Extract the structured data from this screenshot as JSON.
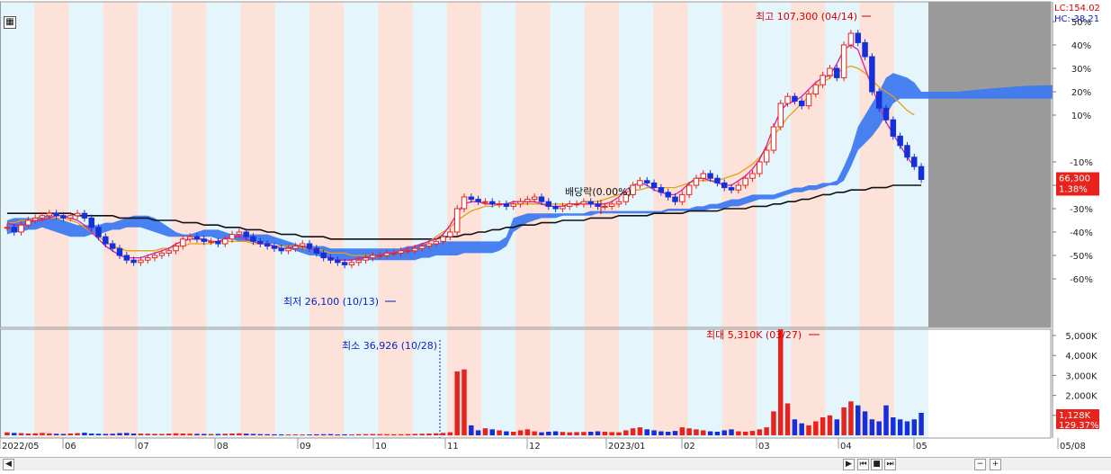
{
  "chart_data": {
    "type": "candlestick",
    "price_axis_unit": "% of base",
    "price_axis": {
      "ticks": [
        50,
        40,
        30,
        20,
        10,
        -10,
        -20,
        -30,
        -40,
        -50,
        -60
      ],
      "labels": [
        "50%",
        "40%",
        "30%",
        "20%",
        "10%",
        "-10%",
        "-20%",
        "-30%",
        "-40%",
        "-50%",
        "-60%"
      ],
      "range": [
        -70,
        60
      ]
    },
    "volume_axis": {
      "ticks": [
        5000,
        4000,
        3000,
        2000,
        1000
      ],
      "labels": [
        "5,000K",
        "4,000K",
        "3,000K",
        "2,000K",
        "1,000K"
      ],
      "range": [
        0,
        5500
      ]
    },
    "x_labels": [
      "2022/05",
      "06",
      "07",
      "08",
      "09",
      "10",
      "11",
      "12",
      "2023/01",
      "02",
      "03",
      "04",
      "05",
      "05/08"
    ],
    "corner_labels": {
      "lc": "LC:154.02",
      "hc": "HC:-38.21"
    },
    "current_price": {
      "value": "66,300",
      "change": "1.38%",
      "pct": -17.5
    },
    "current_volume": {
      "value": "1,128K",
      "change": "129.37%"
    },
    "annotations": {
      "high": "최고 107,300 (04/14)",
      "low": "최저 26,100 (10/13)",
      "dividend": "배당락(0.00%)",
      "vol_max": "최대 5,310K (03/27)",
      "vol_min": "최소 36,926 (10/28)"
    },
    "close_pct": [
      -38,
      -40,
      -37,
      -35,
      -34,
      -33,
      -32,
      -33,
      -34,
      -33,
      -32,
      -34,
      -38,
      -42,
      -45,
      -47,
      -50,
      -52,
      -53,
      -52,
      -51,
      -50,
      -49,
      -48,
      -46,
      -43,
      -42,
      -43,
      -44,
      -44,
      -45,
      -43,
      -41,
      -40,
      -42,
      -44,
      -45,
      -46,
      -47,
      -48,
      -47,
      -46,
      -45,
      -47,
      -49,
      -51,
      -52,
      -53,
      -54,
      -53,
      -52,
      -51,
      -50,
      -50,
      -49,
      -49,
      -48,
      -48,
      -47,
      -46,
      -45,
      -44,
      -42,
      -40,
      -30,
      -25,
      -26,
      -27,
      -27,
      -28,
      -28,
      -29,
      -28,
      -27,
      -26,
      -25,
      -27,
      -29,
      -30,
      -29,
      -28,
      -28,
      -27,
      -28,
      -29,
      -29,
      -28,
      -27,
      -24,
      -20,
      -18,
      -19,
      -21,
      -23,
      -25,
      -27,
      -24,
      -20,
      -17,
      -15,
      -17,
      -19,
      -21,
      -22,
      -20,
      -17,
      -15,
      -10,
      -5,
      5,
      15,
      18,
      16,
      14,
      19,
      23,
      27,
      30,
      26,
      40,
      45,
      41,
      35,
      20,
      13,
      8,
      1,
      -3,
      -8,
      -12,
      -17.5
    ],
    "volume_k": [
      150,
      120,
      110,
      90,
      100,
      120,
      95,
      80,
      70,
      90,
      110,
      130,
      90,
      80,
      70,
      80,
      110,
      120,
      90,
      85,
      80,
      75,
      70,
      85,
      100,
      90,
      80,
      75,
      70,
      65,
      70,
      80,
      90,
      100,
      85,
      70,
      60,
      55,
      50,
      45,
      40,
      45,
      40,
      45,
      50,
      55,
      60,
      40,
      50,
      45,
      55,
      60,
      65,
      60,
      55,
      50,
      55,
      60,
      70,
      80,
      90,
      100,
      120,
      150,
      3200,
      3300,
      500,
      250,
      350,
      300,
      250,
      200,
      180,
      250,
      300,
      200,
      150,
      180,
      200,
      170,
      150,
      160,
      170,
      180,
      200,
      180,
      160,
      150,
      250,
      350,
      400,
      300,
      250,
      200,
      180,
      220,
      400,
      350,
      300,
      250,
      200,
      180,
      250,
      300,
      200,
      180,
      220,
      300,
      400,
      1200,
      5310,
      1600,
      800,
      600,
      500,
      700,
      900,
      1000,
      800,
      1400,
      1700,
      1500,
      1200,
      800,
      700,
      1500,
      900,
      800,
      700,
      800,
      1128
    ],
    "ma_short_pct": [
      -36,
      -37,
      -37,
      -36,
      -35,
      -35,
      -34,
      -33,
      -33,
      -34,
      -35,
      -37,
      -40,
      -43,
      -46,
      -48,
      -50,
      -51,
      -51,
      -51,
      -50,
      -49,
      -48,
      -47,
      -45,
      -44,
      -43,
      -43,
      -43,
      -44,
      -44,
      -43,
      -42,
      -42,
      -43,
      -44,
      -45,
      -45,
      -46,
      -47,
      -47,
      -46,
      -46,
      -47,
      -48,
      -50,
      -51,
      -52,
      -52,
      -52,
      -51,
      -51,
      -50,
      -50,
      -49,
      -49,
      -48,
      -47,
      -46,
      -45,
      -44,
      -43,
      -41,
      -37,
      -32,
      -28,
      -27,
      -27,
      -28,
      -28,
      -28,
      -28,
      -27,
      -27,
      -27,
      -27,
      -28,
      -29,
      -29,
      -29,
      -28,
      -28,
      -28,
      -28,
      -28,
      -28,
      -27,
      -25,
      -22,
      -20,
      -19,
      -20,
      -22,
      -23,
      -24,
      -24,
      -22,
      -19,
      -17,
      -17,
      -18,
      -19,
      -20,
      -20,
      -18,
      -16,
      -13,
      -9,
      -3,
      5,
      12,
      15,
      16,
      18,
      21,
      24,
      26,
      27,
      32,
      38,
      40,
      38,
      30,
      22,
      14,
      7,
      2,
      -3,
      -8,
      -12
    ],
    "ma_mid_pct": [
      -36,
      -36,
      -35,
      -35,
      -34,
      -34,
      -34,
      -34,
      -34,
      -35,
      -36,
      -38,
      -40,
      -42,
      -44,
      -46,
      -47,
      -48,
      -48,
      -48,
      -48,
      -48,
      -47,
      -47,
      -46,
      -46,
      -45,
      -45,
      -45,
      -45,
      -44,
      -44,
      -44,
      -44,
      -44,
      -45,
      -45,
      -45,
      -46,
      -46,
      -46,
      -46,
      -47,
      -47,
      -47,
      -48,
      -49,
      -49,
      -49,
      -50,
      -50,
      -50,
      -50,
      -50,
      -49,
      -49,
      -48,
      -47,
      -46,
      -45,
      -44,
      -42,
      -40,
      -38,
      -35,
      -33,
      -31,
      -30,
      -29,
      -29,
      -28,
      -28,
      -28,
      -28,
      -28,
      -28,
      -28,
      -28,
      -28,
      -28,
      -28,
      -28,
      -27,
      -27,
      -27,
      -26,
      -25,
      -24,
      -23,
      -22,
      -22,
      -21,
      -21,
      -21,
      -21,
      -21,
      -20,
      -19,
      -18,
      -18,
      -18,
      -18,
      -17,
      -16,
      -15,
      -13,
      -11,
      -8,
      -4,
      1,
      5,
      9,
      12,
      15,
      18,
      21,
      24,
      26,
      28,
      30,
      31,
      30,
      28,
      25,
      22,
      20,
      18,
      15,
      12,
      10
    ],
    "ma_long_pct": [
      -32,
      -32,
      -32,
      -32,
      -32,
      -32,
      -32,
      -32,
      -32,
      -32,
      -33,
      -33,
      -33,
      -33,
      -33,
      -33,
      -34,
      -34,
      -34,
      -34,
      -34,
      -35,
      -35,
      -35,
      -35,
      -36,
      -36,
      -36,
      -37,
      -37,
      -37,
      -38,
      -38,
      -38,
      -39,
      -39,
      -39,
      -40,
      -40,
      -41,
      -41,
      -41,
      -42,
      -42,
      -42,
      -42,
      -43,
      -43,
      -43,
      -43,
      -43,
      -43,
      -43,
      -43,
      -43,
      -43,
      -43,
      -43,
      -43,
      -43,
      -43,
      -43,
      -42,
      -42,
      -42,
      -41,
      -41,
      -40,
      -40,
      -39,
      -39,
      -38,
      -38,
      -37,
      -37,
      -37,
      -36,
      -36,
      -36,
      -35,
      -35,
      -35,
      -35,
      -34,
      -34,
      -34,
      -34,
      -33,
      -33,
      -33,
      -33,
      -33,
      -32,
      -32,
      -32,
      -32,
      -32,
      -31,
      -31,
      -31,
      -31,
      -31,
      -30,
      -30,
      -30,
      -30,
      -29,
      -29,
      -29,
      -28,
      -28,
      -27,
      -27,
      -26,
      -26,
      -25,
      -24,
      -24,
      -23,
      -23,
      -22,
      -22,
      -22,
      -21,
      -21,
      -21,
      -20,
      -20,
      -20,
      -20,
      -20
    ],
    "cloud_top_pct": [
      -35,
      -34,
      -34,
      -34,
      -34,
      -33,
      -33,
      -34,
      -35,
      -36,
      -37,
      -37,
      -37,
      -37,
      -36,
      -36,
      -35,
      -34,
      -33,
      -33,
      -33,
      -34,
      -36,
      -38,
      -40,
      -41,
      -41,
      -40,
      -39,
      -39,
      -39,
      -40,
      -41,
      -41,
      -41,
      -41,
      -41,
      -41,
      -42,
      -43,
      -44,
      -45,
      -46,
      -46,
      -46,
      -46,
      -47,
      -47,
      -47,
      -47,
      -47,
      -47,
      -47,
      -47,
      -47,
      -47,
      -47,
      -46,
      -46,
      -45,
      -45,
      -45,
      -44,
      -44,
      -44,
      -44,
      -44,
      -44,
      -44,
      -44,
      -44,
      -42,
      -34,
      -33,
      -32,
      -32,
      -32,
      -32,
      -32,
      -32,
      -32,
      -32,
      -32,
      -31,
      -31,
      -31,
      -31,
      -31,
      -31,
      -31,
      -31,
      -31,
      -31,
      -31,
      -30,
      -30,
      -30,
      -30,
      -29,
      -29,
      -28,
      -28,
      -27,
      -26,
      -26,
      -25,
      -24,
      -24,
      -24,
      -24,
      -23,
      -22,
      -21,
      -21,
      -20,
      -20,
      -19,
      -19,
      -18,
      -12,
      -5,
      5,
      10,
      15,
      20,
      26,
      28,
      27,
      26,
      24,
      20
    ],
    "cloud_bot_pct": [
      -41,
      -40,
      -40,
      -39,
      -39,
      -38,
      -39,
      -40,
      -41,
      -42,
      -42,
      -42,
      -41,
      -41,
      -40,
      -39,
      -39,
      -38,
      -38,
      -38,
      -39,
      -40,
      -41,
      -42,
      -42,
      -42,
      -42,
      -42,
      -42,
      -42,
      -43,
      -43,
      -43,
      -44,
      -44,
      -44,
      -44,
      -45,
      -45,
      -46,
      -47,
      -48,
      -49,
      -50,
      -50,
      -51,
      -51,
      -52,
      -52,
      -52,
      -52,
      -52,
      -52,
      -52,
      -52,
      -52,
      -52,
      -52,
      -52,
      -51,
      -51,
      -50,
      -50,
      -50,
      -50,
      -49,
      -49,
      -49,
      -49,
      -49,
      -48,
      -46,
      -40,
      -38,
      -36,
      -35,
      -34,
      -34,
      -34,
      -33,
      -33,
      -33,
      -33,
      -33,
      -32,
      -32,
      -32,
      -32,
      -32,
      -32,
      -32,
      -32,
      -32,
      -32,
      -31,
      -31,
      -31,
      -31,
      -31,
      -31,
      -30,
      -30,
      -30,
      -29,
      -29,
      -28,
      -27,
      -26,
      -26,
      -26,
      -25,
      -24,
      -23,
      -23,
      -22,
      -22,
      -21,
      -20,
      -20,
      -18,
      -12,
      -5,
      -2,
      1,
      5,
      10,
      15,
      17,
      17,
      17,
      17
    ]
  },
  "colors": {
    "up": "#e8221c",
    "down": "#1530d8",
    "ma_short": "#d81fa0",
    "ma_mid": "#e6a012",
    "ma_long": "#111111",
    "cloud": "#3f7af0",
    "band_pink": "#fde2d9",
    "band_blue": "#e4f6fc",
    "future": "#9b9b9b",
    "annot_red": "#d80000",
    "annot_blue": "#0b1fc4"
  },
  "bands": [
    "blue",
    "pink",
    "blue",
    "pink",
    "blue",
    "pink",
    "blue",
    "pink",
    "blue",
    "pink",
    "blue",
    "pink",
    "blue",
    "pink",
    "blue",
    "pink",
    "blue",
    "pink",
    "blue",
    "pink",
    "blue",
    "pink",
    "blue",
    "pink",
    "blue",
    "pink",
    "blue"
  ],
  "icons": [
    "grid-icon",
    "scroll-left-icon",
    "scroll-right-icon",
    "first-icon",
    "prev-icon",
    "stop-icon",
    "next-icon",
    "last-icon",
    "zoom-out-icon",
    "zoom-in-icon"
  ]
}
